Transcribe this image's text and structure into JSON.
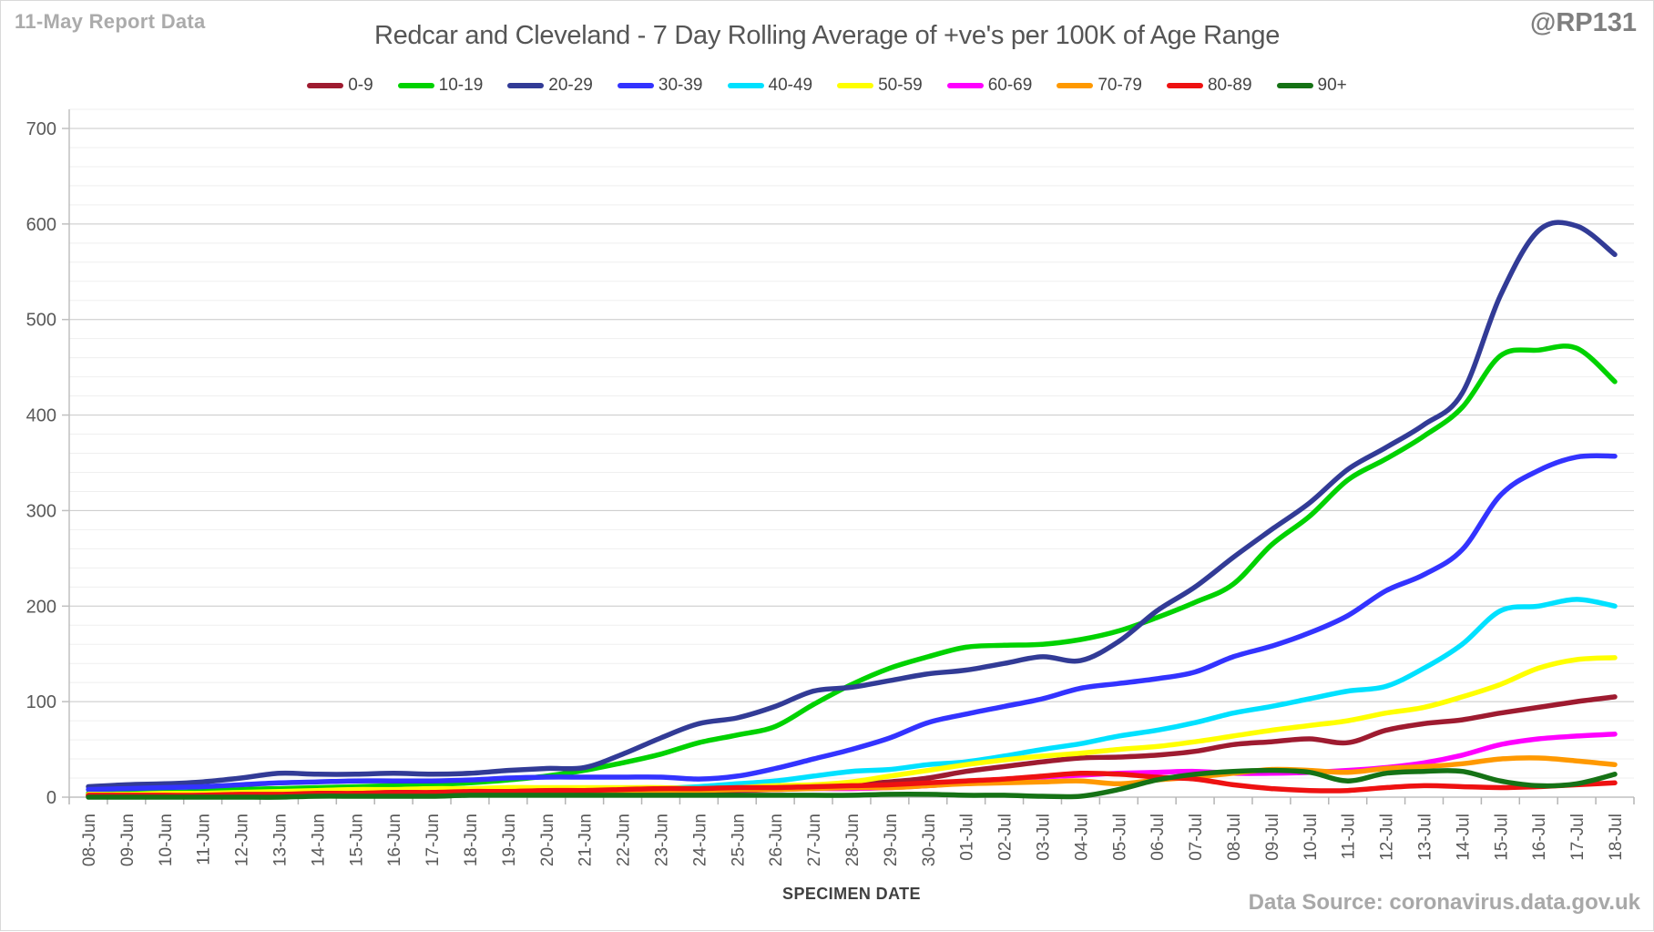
{
  "header": {
    "report_label": "11-May Report Data",
    "title": "Redcar and Cleveland - 7 Day Rolling Average of +ve's per 100K of Age Range",
    "handle": "@RP131"
  },
  "footer": {
    "xaxis_title": "SPECIMEN DATE",
    "data_source": "Data Source: coronavirus.data.gov.uk"
  },
  "chart_data": {
    "type": "line",
    "title": "Redcar and Cleveland - 7 Day Rolling Average of +ve's per 100K of Age Range",
    "xlabel": "SPECIMEN DATE",
    "ylabel": "",
    "ylim": [
      0,
      700
    ],
    "ytick_interval": 100,
    "minor_gridline_interval": 20,
    "grid": true,
    "legend_position": "top",
    "x": [
      "08-Jun",
      "09-Jun",
      "10-Jun",
      "11-Jun",
      "12-Jun",
      "13-Jun",
      "14-Jun",
      "15-Jun",
      "16-Jun",
      "17-Jun",
      "18-Jun",
      "19-Jun",
      "20-Jun",
      "21-Jun",
      "22-Jun",
      "23-Jun",
      "24-Jun",
      "25-Jun",
      "26-Jun",
      "27-Jun",
      "28-Jun",
      "29-Jun",
      "30-Jun",
      "01-Jul",
      "02-Jul",
      "03-Jul",
      "04-Jul",
      "05-Jul",
      "06-Jul",
      "07-Jul",
      "08-Jul",
      "09-Jul",
      "10-Jul",
      "11-Jul",
      "12-Jul",
      "13-Jul",
      "14-Jul",
      "15-Jul",
      "16-Jul",
      "17-Jul",
      "18-Jul"
    ],
    "series": [
      {
        "name": "0-9",
        "color": "#9E1B30",
        "values": [
          2,
          2,
          2,
          2,
          3,
          3,
          3,
          3,
          3,
          3,
          4,
          4,
          4,
          5,
          5,
          6,
          6,
          7,
          8,
          10,
          13,
          16,
          20,
          27,
          32,
          37,
          41,
          42,
          44,
          48,
          55,
          58,
          61,
          57,
          70,
          77,
          81,
          88,
          94,
          100,
          105
        ]
      },
      {
        "name": "10-19",
        "color": "#00D200",
        "values": [
          4,
          5,
          5,
          6,
          8,
          9,
          10,
          11,
          12,
          13,
          15,
          18,
          22,
          28,
          36,
          45,
          57,
          65,
          74,
          97,
          118,
          135,
          147,
          157,
          159,
          160,
          165,
          174,
          188,
          204,
          223,
          264,
          294,
          332,
          354,
          378,
          408,
          462,
          468,
          470,
          435
        ]
      },
      {
        "name": "20-29",
        "color": "#323B96",
        "values": [
          11,
          13,
          14,
          16,
          20,
          25,
          24,
          24,
          25,
          24,
          25,
          28,
          30,
          31,
          45,
          62,
          77,
          83,
          95,
          111,
          115,
          122,
          129,
          133,
          140,
          147,
          143,
          163,
          195,
          220,
          251,
          280,
          308,
          343,
          366,
          390,
          423,
          525,
          593,
          598,
          568
        ]
      },
      {
        "name": "30-39",
        "color": "#3333FF",
        "values": [
          8,
          9,
          10,
          11,
          13,
          15,
          16,
          17,
          17,
          17,
          18,
          20,
          21,
          21,
          21,
          21,
          19,
          22,
          30,
          40,
          50,
          62,
          78,
          87,
          95,
          103,
          114,
          119,
          124,
          131,
          147,
          158,
          172,
          190,
          216,
          233,
          259,
          316,
          342,
          356,
          357
        ]
      },
      {
        "name": "40-49",
        "color": "#00E1FF",
        "values": [
          2,
          2,
          3,
          3,
          4,
          5,
          5,
          6,
          6,
          7,
          7,
          8,
          8,
          8,
          8,
          9,
          11,
          14,
          17,
          22,
          27,
          29,
          34,
          37,
          43,
          50,
          56,
          64,
          70,
          78,
          88,
          95,
          103,
          111,
          116,
          135,
          160,
          195,
          200,
          207,
          200
        ]
      },
      {
        "name": "50-59",
        "color": "#FFFF00",
        "values": [
          3,
          3,
          4,
          4,
          5,
          6,
          7,
          8,
          8,
          9,
          9,
          10,
          10,
          10,
          10,
          10,
          9,
          10,
          12,
          13,
          16,
          22,
          28,
          34,
          39,
          43,
          46,
          50,
          53,
          58,
          64,
          70,
          75,
          80,
          88,
          94,
          105,
          118,
          135,
          144,
          146
        ]
      },
      {
        "name": "60-69",
        "color": "#FF00FF",
        "values": [
          1,
          1,
          1,
          2,
          2,
          2,
          3,
          3,
          4,
          4,
          5,
          5,
          6,
          6,
          7,
          7,
          8,
          8,
          8,
          9,
          9,
          10,
          12,
          15,
          18,
          21,
          23,
          25,
          26,
          27,
          25,
          25,
          26,
          28,
          31,
          36,
          44,
          55,
          61,
          64,
          66
        ]
      },
      {
        "name": "70-79",
        "color": "#FF9900",
        "values": [
          1,
          1,
          1,
          1,
          2,
          2,
          2,
          3,
          3,
          4,
          4,
          5,
          5,
          6,
          6,
          7,
          7,
          8,
          8,
          9,
          10,
          10,
          12,
          14,
          15,
          16,
          17,
          14,
          18,
          21,
          25,
          29,
          28,
          26,
          30,
          32,
          35,
          40,
          41,
          38,
          34
        ]
      },
      {
        "name": "80-89",
        "color": "#EE1111",
        "values": [
          2,
          2,
          2,
          2,
          3,
          3,
          4,
          4,
          5,
          5,
          6,
          6,
          7,
          7,
          8,
          9,
          9,
          10,
          10,
          11,
          12,
          13,
          15,
          17,
          19,
          22,
          25,
          24,
          21,
          19,
          13,
          9,
          7,
          7,
          10,
          12,
          11,
          10,
          11,
          13,
          15
        ]
      },
      {
        "name": "90+",
        "color": "#157215",
        "values": [
          0,
          0,
          0,
          0,
          0,
          0,
          1,
          1,
          1,
          1,
          2,
          2,
          2,
          2,
          2,
          2,
          2,
          2,
          2,
          2,
          2,
          3,
          3,
          2,
          2,
          1,
          1,
          8,
          18,
          24,
          27,
          28,
          26,
          17,
          25,
          27,
          27,
          17,
          12,
          14,
          24
        ]
      }
    ]
  }
}
